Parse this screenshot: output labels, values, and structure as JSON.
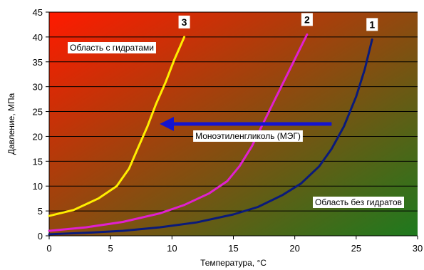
{
  "chart_data": {
    "type": "line",
    "xlabel": "Температура, °C",
    "ylabel": "Давление, МПа",
    "xlim": [
      0,
      30
    ],
    "ylim": [
      0,
      45
    ],
    "x_ticks": [
      "0",
      "5",
      "10",
      "15",
      "20",
      "25",
      "30"
    ],
    "y_ticks": [
      "0",
      "5",
      "10",
      "15",
      "20",
      "25",
      "30",
      "35",
      "40",
      "45"
    ],
    "grid": "horizontal",
    "background": {
      "left_top": "#ff1a00",
      "right_bottom": "#1e7a1e"
    },
    "series": [
      {
        "name": "1",
        "color": "#0a1a7a",
        "x": [
          0,
          3,
          6,
          9,
          12,
          15,
          17,
          19,
          20.5,
          22,
          23,
          24,
          25,
          25.7,
          26.3
        ],
        "y": [
          0.3,
          0.6,
          1.0,
          1.7,
          2.7,
          4.3,
          5.8,
          8.2,
          10.5,
          14.0,
          17.5,
          22.0,
          28.0,
          33.5,
          39.5
        ]
      },
      {
        "name": "2",
        "color": "#e020d0",
        "x": [
          0,
          3,
          6,
          9,
          11,
          13,
          14.5,
          15.5,
          16.5,
          17.5,
          18.5,
          19.5,
          20.3,
          21
        ],
        "y": [
          1.0,
          1.7,
          2.8,
          4.5,
          6.2,
          8.5,
          11.0,
          14.0,
          18.0,
          23.0,
          28.0,
          33.0,
          37.0,
          40.5
        ]
      },
      {
        "name": "3",
        "color": "#ffee00",
        "x": [
          0,
          2,
          4,
          5.5,
          6.5,
          7.2,
          8,
          8.7,
          9.5,
          10.2,
          11
        ],
        "y": [
          4.0,
          5.2,
          7.5,
          10.0,
          13.5,
          17.5,
          22.0,
          26.5,
          31.0,
          35.5,
          40.0
        ]
      }
    ],
    "annotations": {
      "hydrate_region": "Область с гидратами",
      "no_hydrate_region": "Область без гидратов",
      "inhibitor": "Моноэтиленгликоль (МЭГ)"
    },
    "arrow": {
      "from": [
        23,
        22.5
      ],
      "to": [
        9,
        22.5
      ],
      "color": "#1414d0"
    }
  }
}
